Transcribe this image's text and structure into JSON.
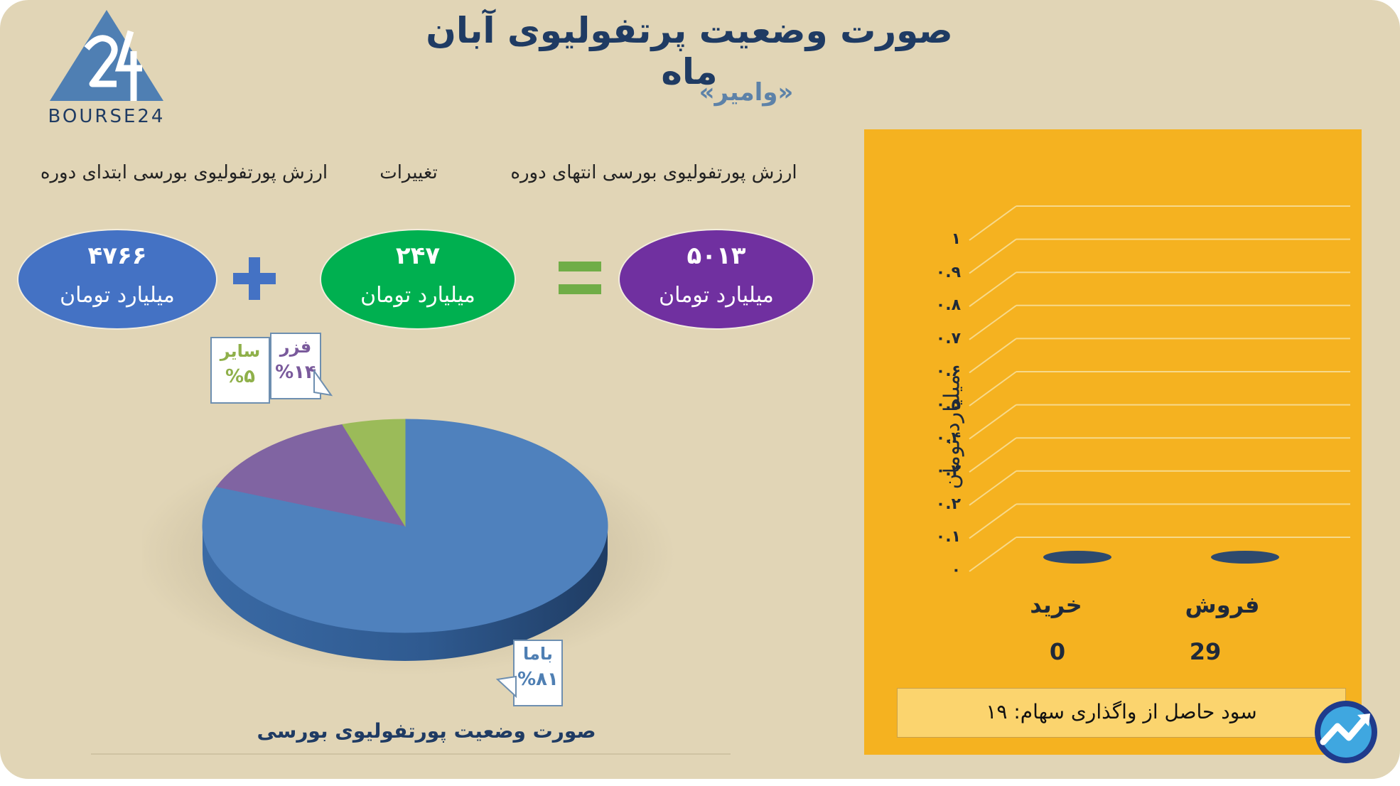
{
  "header": {
    "title": "صورت وضعیت پرتفولیوی آبان ماه",
    "subtitle": "«وامیر»",
    "logo_text": "BOURSE24"
  },
  "equation": {
    "start": {
      "label": "ارزش پورتفولیوی بورسی ابتدای دوره",
      "value": "۴۷۶۶",
      "unit": "میلیارد تومان"
    },
    "change": {
      "label": "تغییرات",
      "value": "۲۴۷",
      "unit": "میلیارد تومان"
    },
    "end": {
      "label": "ارزش پورتفولیوی بورسی انتهای دوره",
      "value": "۵۰۱۳",
      "unit": "میلیارد تومان"
    }
  },
  "profit_box": {
    "text": "سود حاصل از واگذاری سهام: ۱۹"
  },
  "colors": {
    "background": "#e1d5b6",
    "title": "#1f3b63",
    "oval_start": "#4472c4",
    "oval_change": "#00b050",
    "oval_end": "#7030a0",
    "plus": "#4472c4",
    "equals": "#70ad47",
    "panel": "#f5b220",
    "pie_blue": "#4f81bd",
    "pie_purple": "#8064a2",
    "pie_green": "#9bbb59"
  },
  "icons": {
    "logo": "bourse24-triangle-logo",
    "corner": "trend-up-circle-icon"
  },
  "chart_data": [
    {
      "type": "pie",
      "title": "صورت وضعیت پورتفولیوی بورسی",
      "slices": [
        {
          "label": "باما",
          "display": "%۸۱",
          "value": 81,
          "color": "#4f81bd"
        },
        {
          "label": "فزر",
          "display": "%۱۴",
          "value": 14,
          "color": "#8064a2"
        },
        {
          "label": "سایر",
          "display": "%۵",
          "value": 5,
          "color": "#9bbb59"
        }
      ]
    },
    {
      "type": "bar",
      "ylabel": "میلیارد تومان",
      "ylim": [
        0,
        1
      ],
      "yticks": [
        "۰",
        "۰.۱",
        "۰.۲",
        "۰.۳",
        "۰.۴",
        "۰.۵",
        "۰.۶",
        "۰.۷",
        "۰.۸",
        "۰.۹",
        "۱"
      ],
      "categories": [
        "خرید",
        "فروش"
      ],
      "values": [
        0,
        29
      ],
      "value_labels": [
        "0",
        "29"
      ],
      "grid": true
    }
  ]
}
